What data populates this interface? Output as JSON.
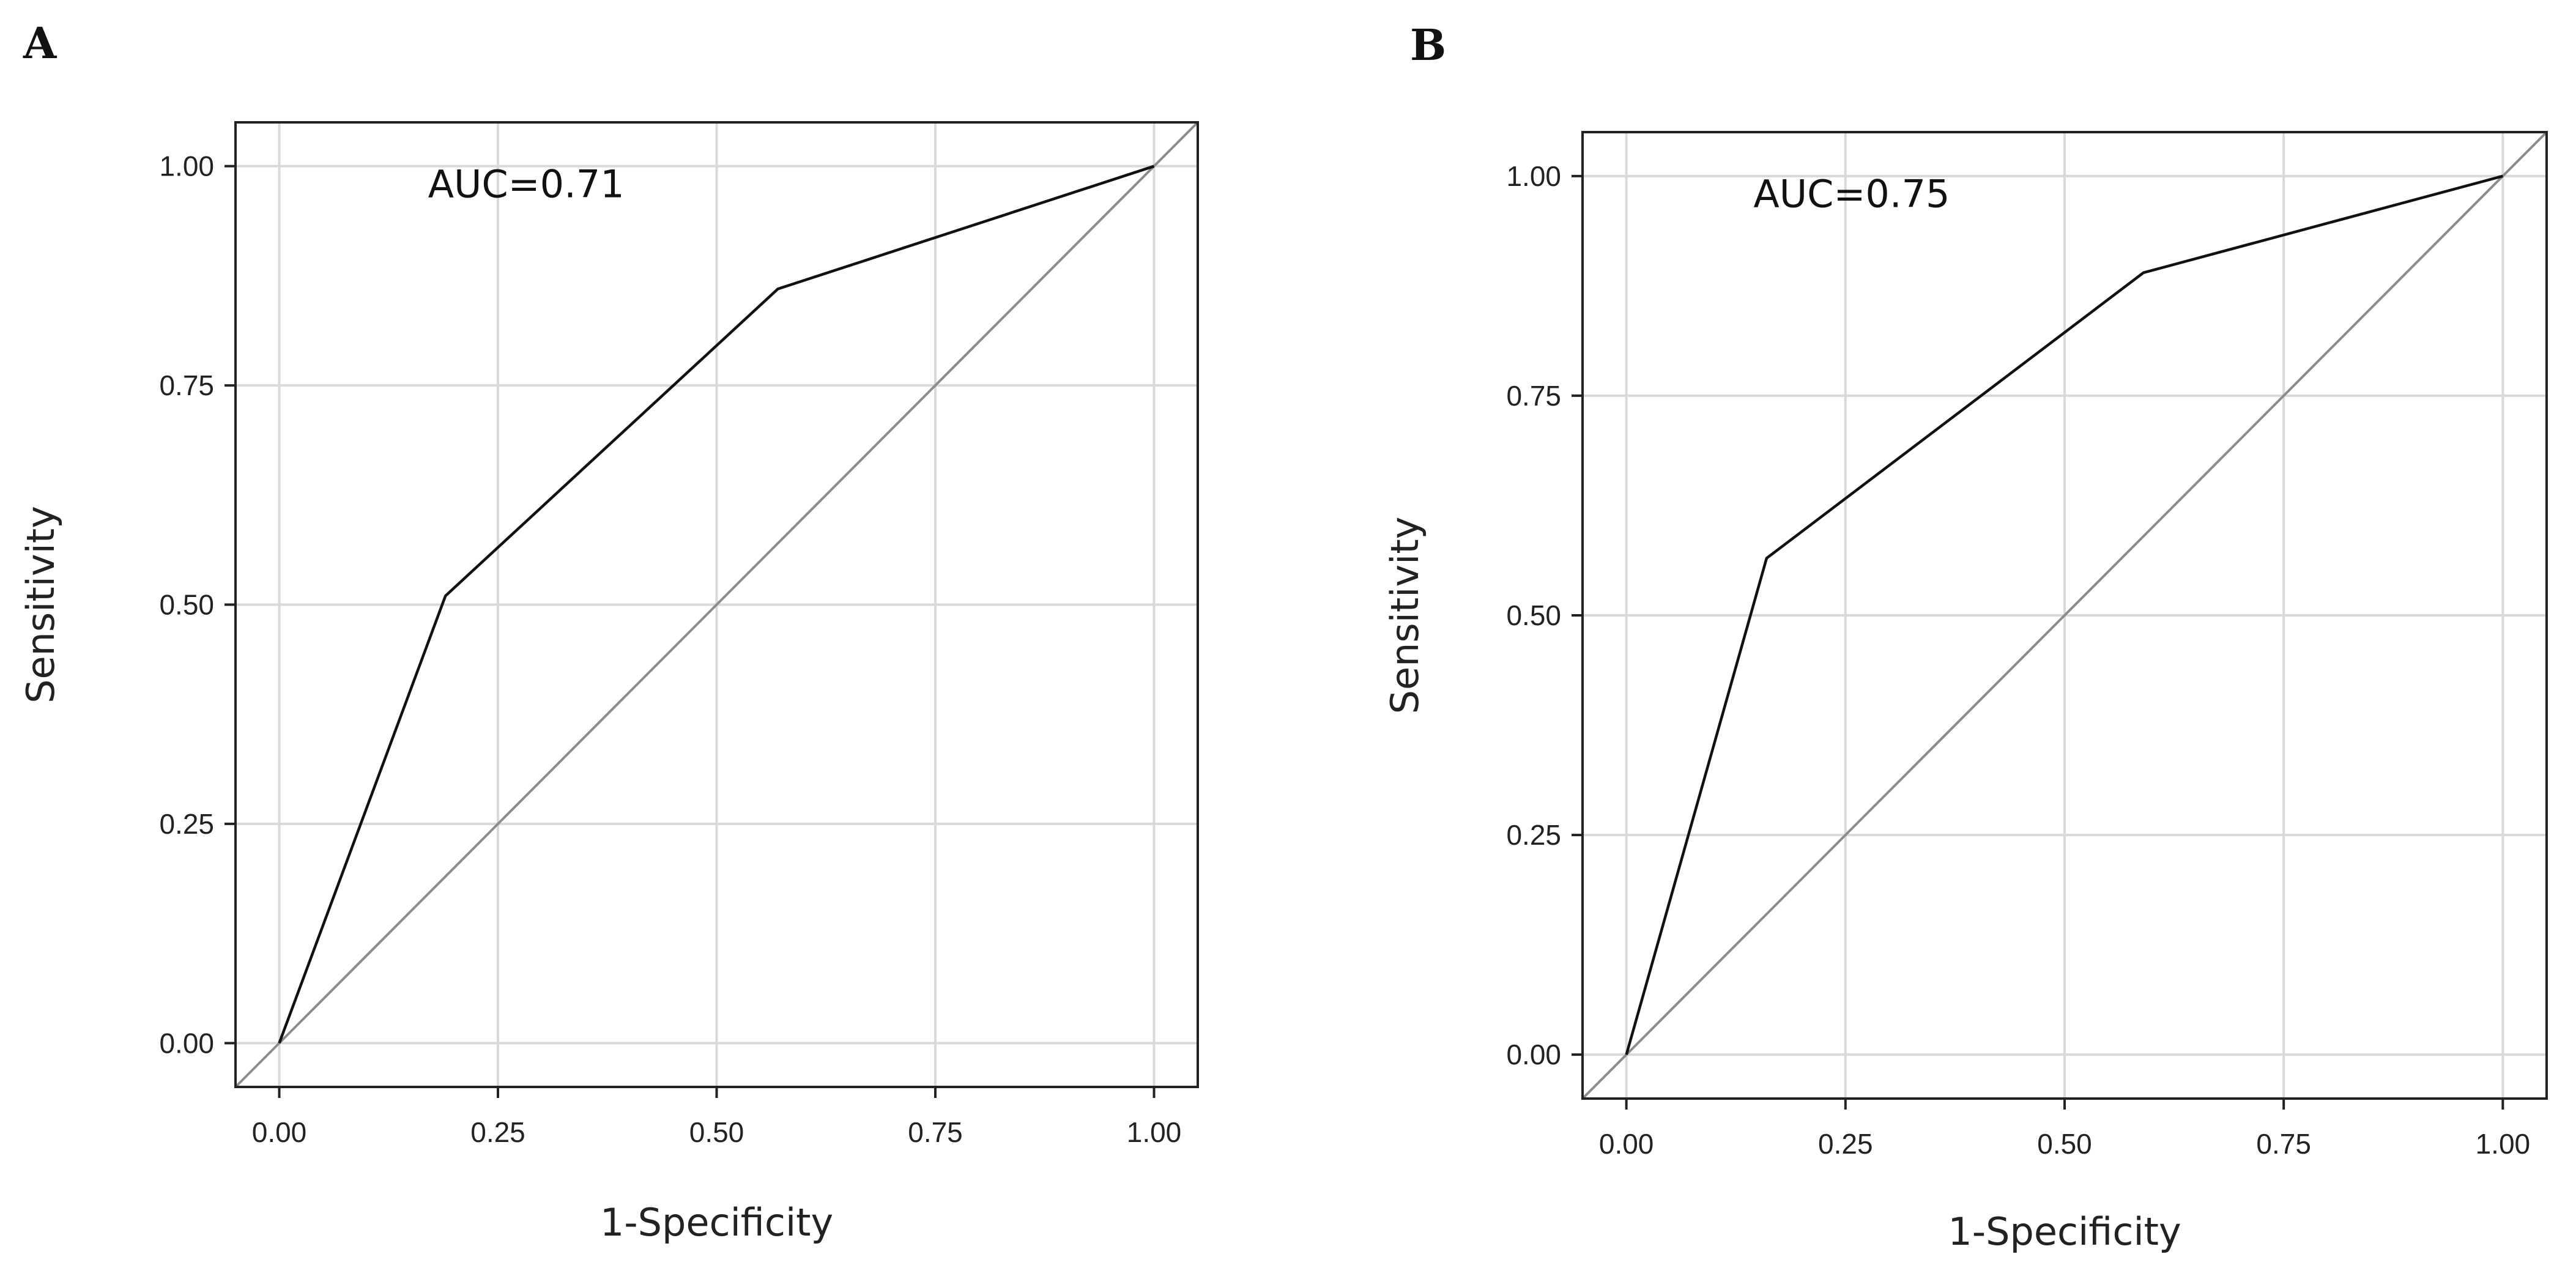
{
  "chart_data": [
    {
      "panel": "A",
      "type": "line",
      "title": "",
      "xlabel": "1-Specificity",
      "ylabel": "Sensitivity",
      "xlim": [
        -0.05,
        1.05
      ],
      "ylim": [
        -0.05,
        1.05
      ],
      "xticks": [
        0,
        0.25,
        0.5,
        0.75,
        1
      ],
      "xtick_labels": [
        "0.00",
        "0.25",
        "0.50",
        "0.75",
        "1.00"
      ],
      "yticks": [
        0,
        0.25,
        0.5,
        0.75,
        1
      ],
      "ytick_labels": [
        "0.00",
        "0.25",
        "0.50",
        "0.75",
        "1.00"
      ],
      "grid": true,
      "annotation": "AUC=0.71",
      "series": [
        {
          "name": "ROC",
          "x": [
            0,
            0.19,
            0.57,
            1
          ],
          "y": [
            0,
            0.51,
            0.86,
            1
          ]
        },
        {
          "name": "Reference",
          "x": [
            -0.05,
            1.05
          ],
          "y": [
            -0.05,
            1.05
          ]
        }
      ]
    },
    {
      "panel": "B",
      "type": "line",
      "title": "",
      "xlabel": "1-Specificity",
      "ylabel": "Sensitivity",
      "xlim": [
        -0.05,
        1.05
      ],
      "ylim": [
        -0.05,
        1.05
      ],
      "xticks": [
        0,
        0.25,
        0.5,
        0.75,
        1
      ],
      "xtick_labels": [
        "0.00",
        "0.25",
        "0.50",
        "0.75",
        "1.00"
      ],
      "yticks": [
        0,
        0.25,
        0.5,
        0.75,
        1
      ],
      "ytick_labels": [
        "0.00",
        "0.25",
        "0.50",
        "0.75",
        "1.00"
      ],
      "grid": true,
      "annotation": "AUC=0.75",
      "series": [
        {
          "name": "ROC",
          "x": [
            0,
            0.16,
            0.59,
            1
          ],
          "y": [
            0,
            0.565,
            0.89,
            1
          ]
        },
        {
          "name": "Reference",
          "x": [
            -0.05,
            1.05
          ],
          "y": [
            -0.05,
            1.05
          ]
        }
      ]
    }
  ]
}
